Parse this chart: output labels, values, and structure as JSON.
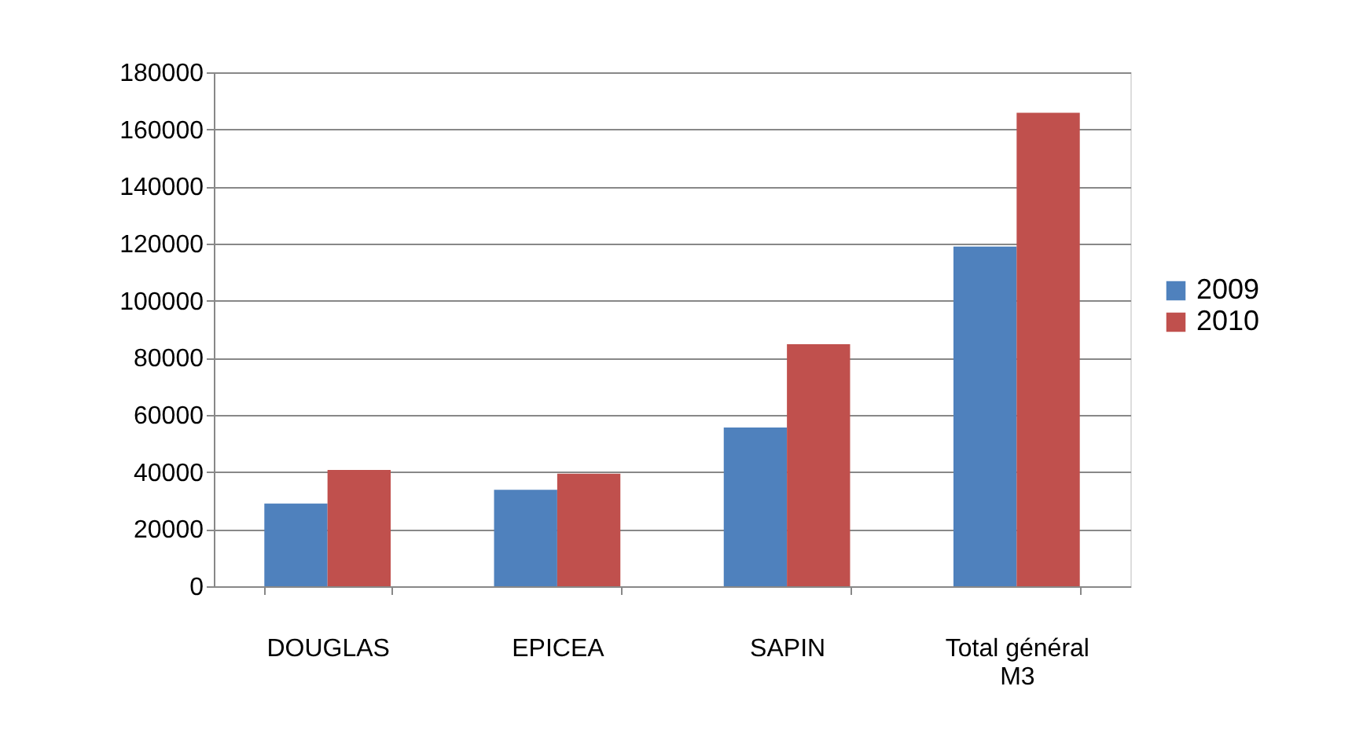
{
  "chart_data": {
    "type": "bar",
    "categories": [
      "DOUGLAS",
      "EPICEA",
      "SAPIN",
      "Total général M3"
    ],
    "series": [
      {
        "name": "2009",
        "color": "#4f81bd",
        "values": [
          29000,
          33800,
          55600,
          119000
        ]
      },
      {
        "name": "2010",
        "color": "#c0504d",
        "values": [
          40700,
          39400,
          84800,
          165800
        ]
      }
    ],
    "ylim": [
      0,
      180000
    ],
    "yticks": [
      0,
      20000,
      40000,
      60000,
      80000,
      100000,
      120000,
      140000,
      160000,
      180000
    ],
    "grid": "y",
    "legend": "right"
  }
}
